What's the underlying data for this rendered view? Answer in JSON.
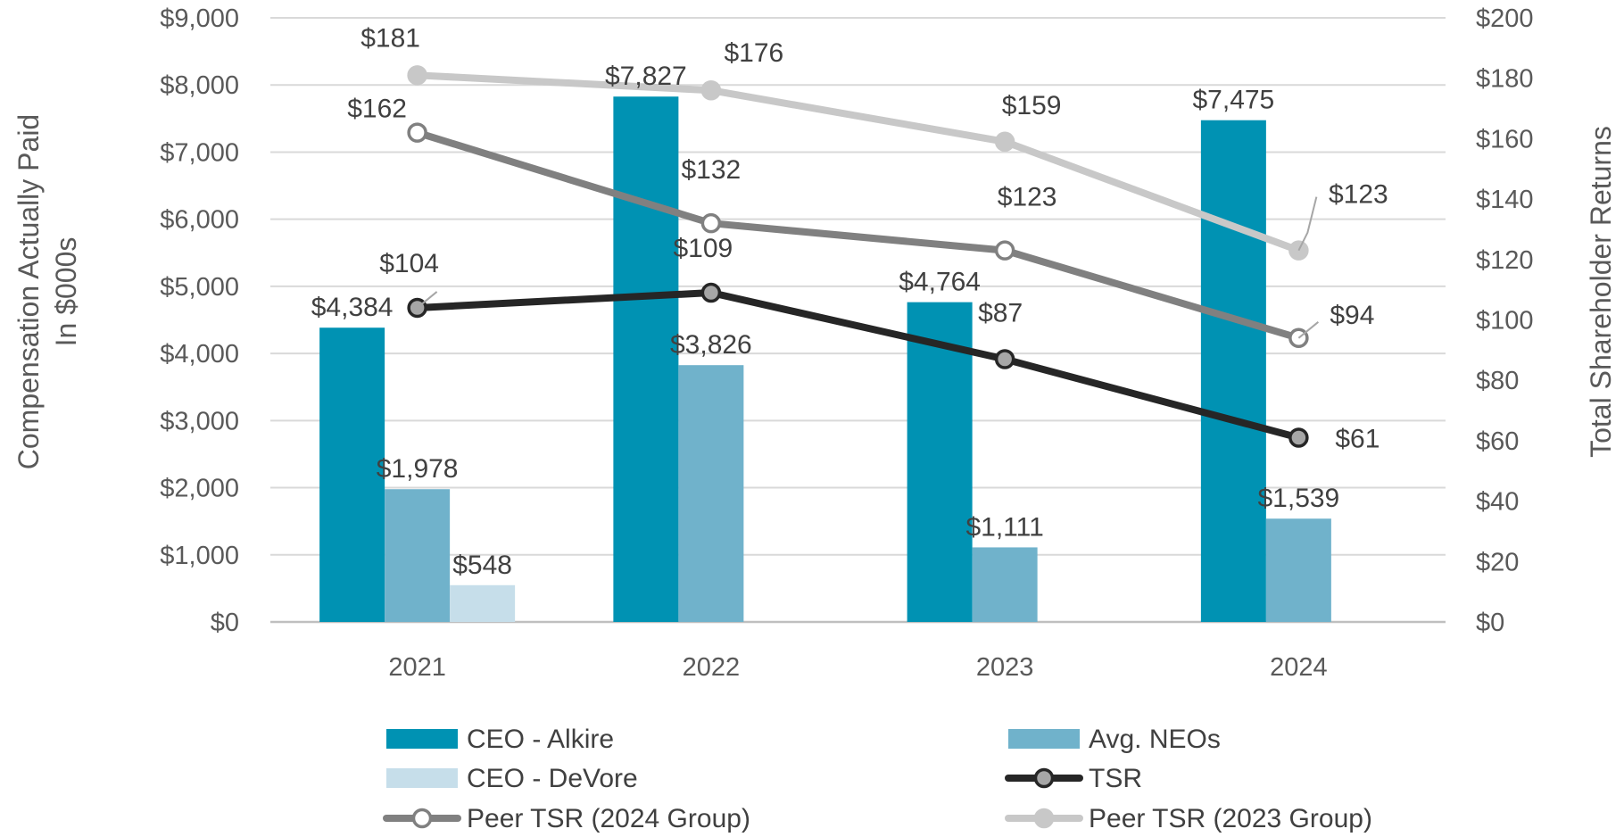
{
  "chart_data": {
    "type": "bar",
    "categories": [
      "2021",
      "2022",
      "2023",
      "2024"
    ],
    "ylabel": [
      "Compensation Actually Paid",
      "In $000s"
    ],
    "y2label": "Total Shareholder Returns",
    "ylim": [
      0,
      9000
    ],
    "y2lim": [
      0,
      200
    ],
    "yticks": [
      "$0",
      "$1,000",
      "$2,000",
      "$3,000",
      "$4,000",
      "$5,000",
      "$6,000",
      "$7,000",
      "$8,000",
      "$9,000"
    ],
    "y2ticks": [
      "$0",
      "$20",
      "$40",
      "$60",
      "$80",
      "$100",
      "$120",
      "$140",
      "$160",
      "$180",
      "$200"
    ],
    "grid": true,
    "legend_position": "bottom",
    "bar_series": [
      {
        "name": "CEO - Alkire",
        "color": "#0092b3",
        "values": [
          4384,
          7827,
          4764,
          7475
        ],
        "labels": [
          "$4,384",
          "$7,827",
          "$4,764",
          "$7,475"
        ]
      },
      {
        "name": "Avg. NEOs",
        "color": "#70b2cb",
        "values": [
          1978,
          3826,
          1111,
          1539
        ],
        "labels": [
          "$1,978",
          "$3,826",
          "$1,111",
          "$1,539"
        ]
      },
      {
        "name": "CEO - DeVore",
        "color": "#c6deea",
        "values": [
          548,
          null,
          null,
          null
        ],
        "labels": [
          "$548",
          null,
          null,
          null
        ]
      }
    ],
    "line_series": [
      {
        "name": "TSR",
        "color": "#262626",
        "marker_fill": "#a6a6a6",
        "values": [
          104,
          109,
          87,
          61
        ],
        "labels": [
          "$104",
          "$109",
          "$87",
          "$61"
        ]
      },
      {
        "name": "Peer TSR (2024 Group)",
        "color": "#808080",
        "marker_fill": "#ffffff",
        "values": [
          162,
          132,
          123,
          94
        ],
        "labels": [
          "$162",
          "$132",
          "$123",
          "$94"
        ]
      },
      {
        "name": "Peer TSR (2023 Group)",
        "color": "#c8c8c8",
        "marker_fill": "#c8c8c8",
        "values": [
          181,
          176,
          159,
          123
        ],
        "labels": [
          "$181",
          "$176",
          "$159",
          "$123"
        ]
      }
    ]
  }
}
